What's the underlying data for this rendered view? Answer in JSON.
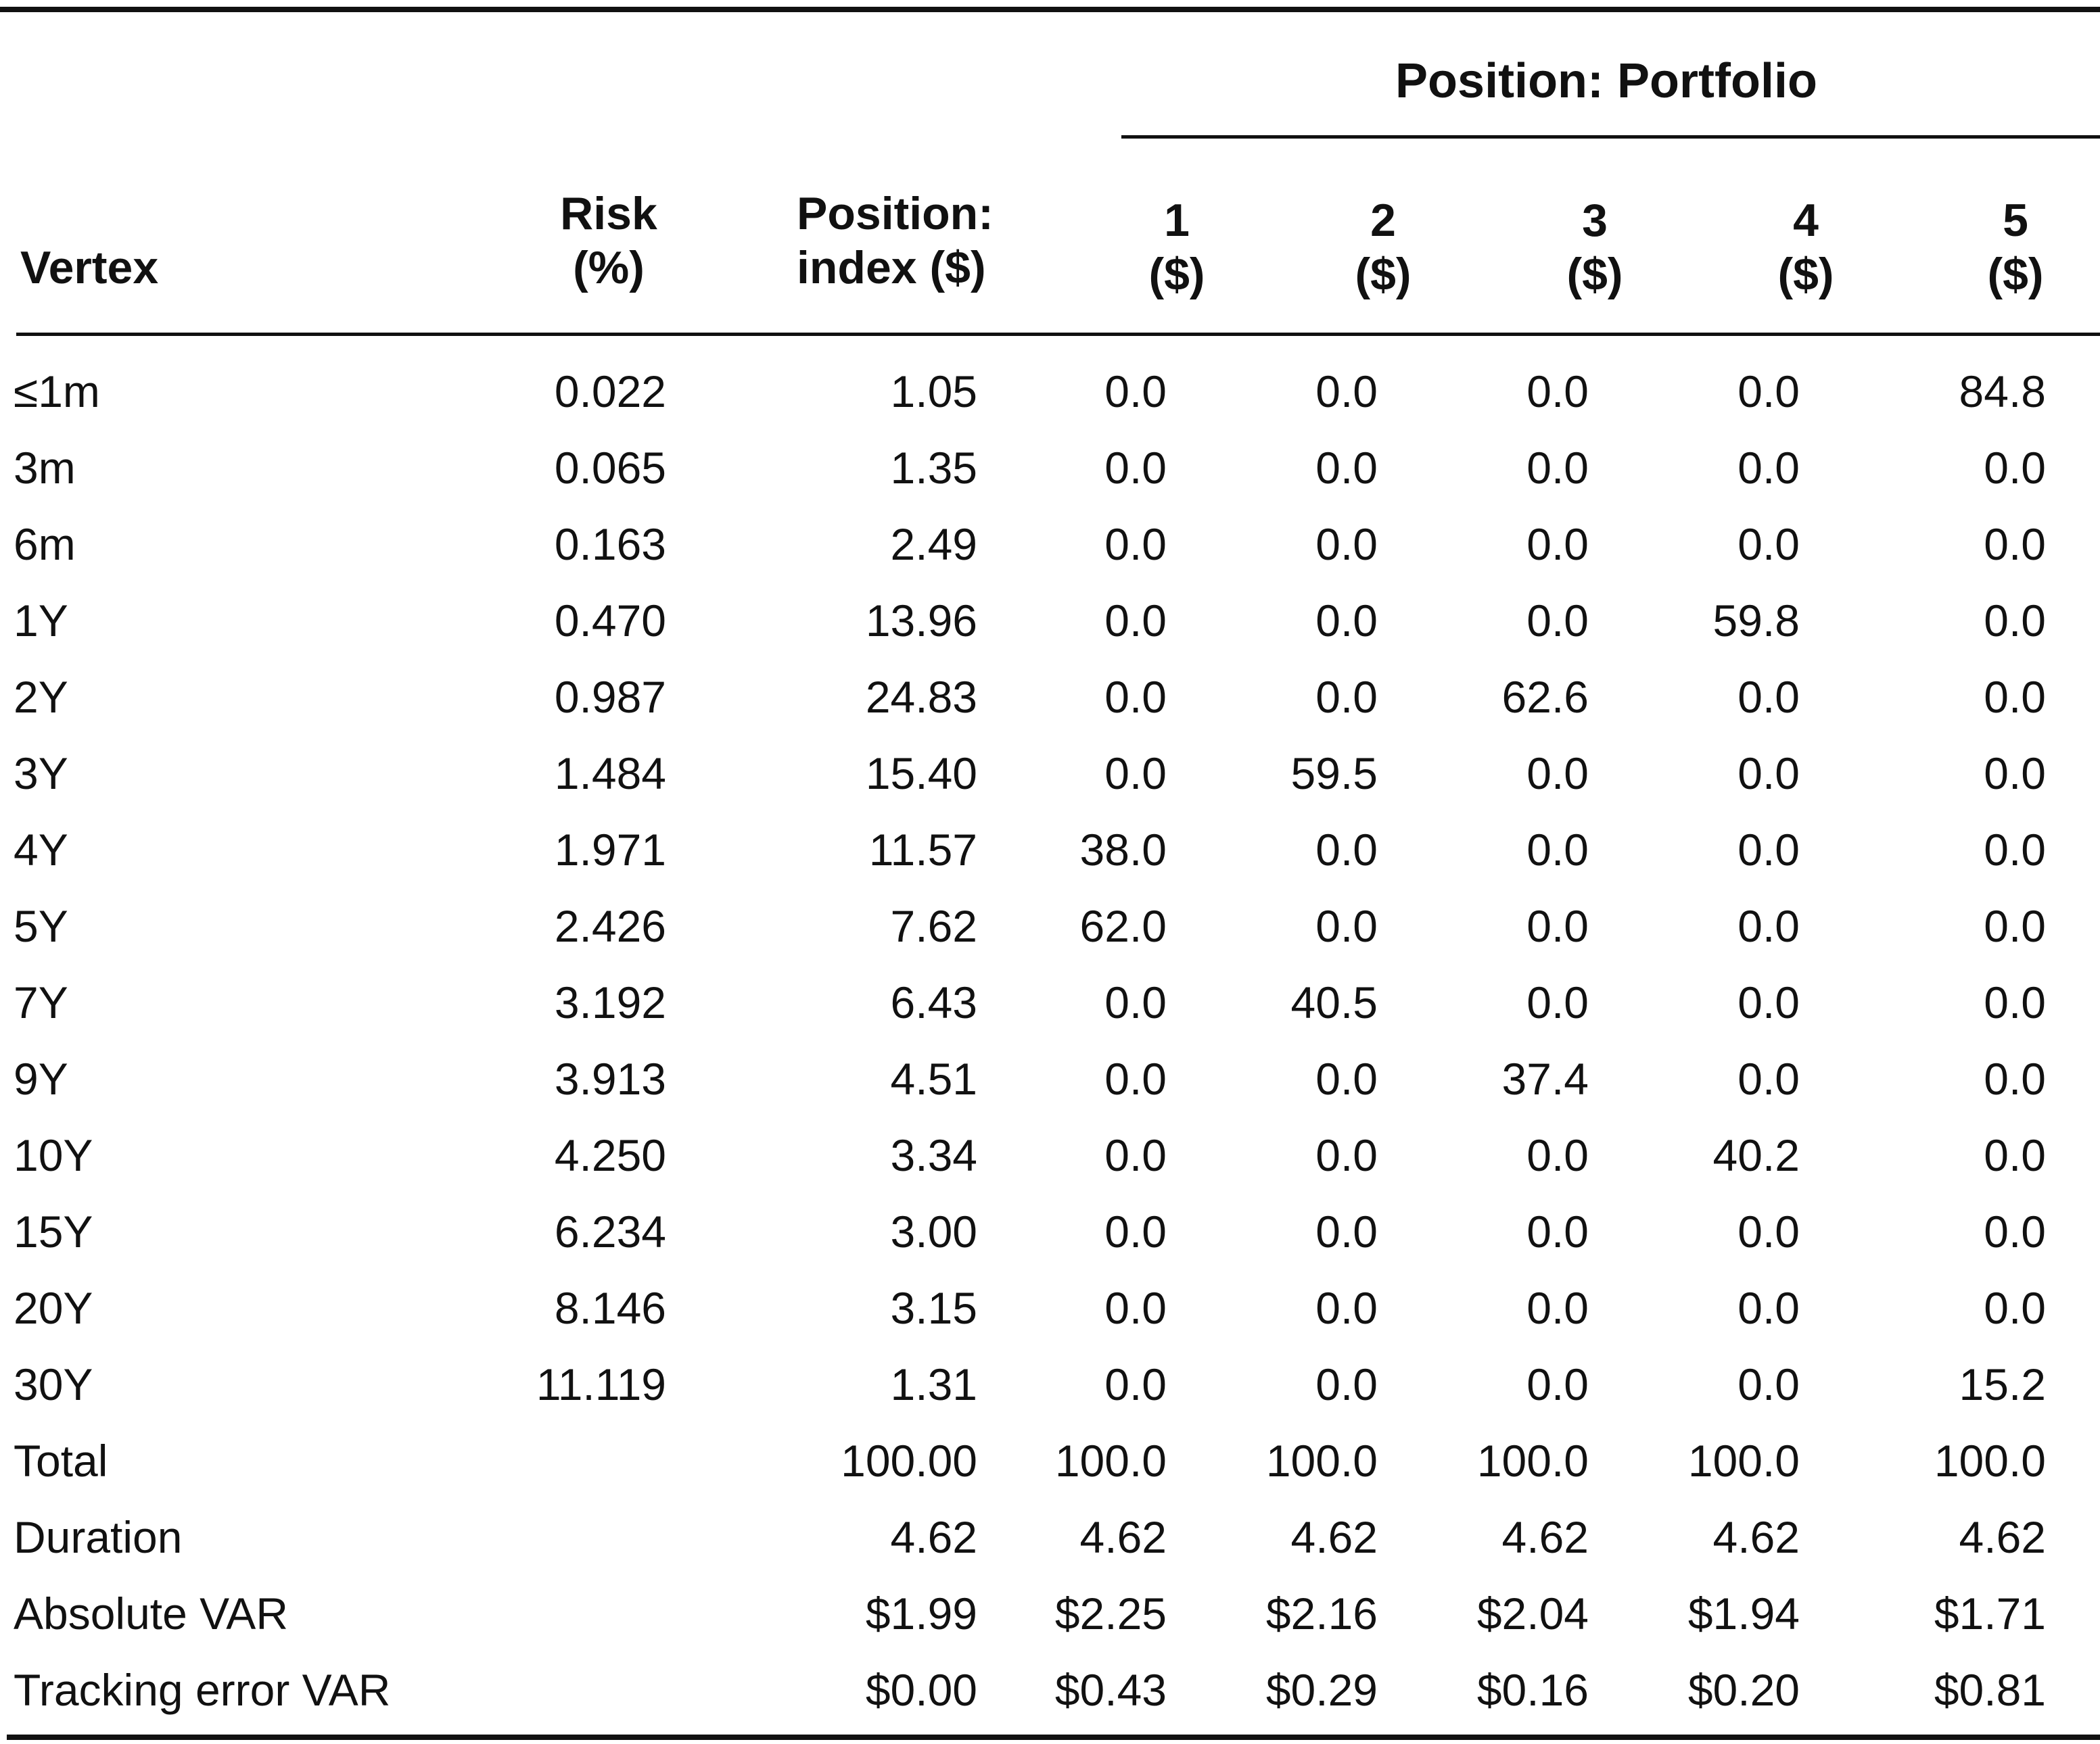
{
  "table": {
    "group_header": "Position: Portfolio",
    "columns": {
      "vertex": "Vertex",
      "risk": [
        "Risk",
        "(%)"
      ],
      "index": [
        "Position:",
        "index ($)"
      ],
      "p1": [
        "1",
        "($)"
      ],
      "p2": [
        "2",
        "($)"
      ],
      "p3": [
        "3",
        "($)"
      ],
      "p4": [
        "4",
        "($)"
      ],
      "p5": [
        "5",
        "($)"
      ]
    },
    "rows": [
      [
        "≤1m",
        "0.022",
        "1.05",
        "0.0",
        "0.0",
        "0.0",
        "0.0",
        "84.8"
      ],
      [
        "3m",
        "0.065",
        "1.35",
        "0.0",
        "0.0",
        "0.0",
        "0.0",
        "0.0"
      ],
      [
        "6m",
        "0.163",
        "2.49",
        "0.0",
        "0.0",
        "0.0",
        "0.0",
        "0.0"
      ],
      [
        "1Y",
        "0.470",
        "13.96",
        "0.0",
        "0.0",
        "0.0",
        "59.8",
        "0.0"
      ],
      [
        "2Y",
        "0.987",
        "24.83",
        "0.0",
        "0.0",
        "62.6",
        "0.0",
        "0.0"
      ],
      [
        "3Y",
        "1.484",
        "15.40",
        "0.0",
        "59.5",
        "0.0",
        "0.0",
        "0.0"
      ],
      [
        "4Y",
        "1.971",
        "11.57",
        "38.0",
        "0.0",
        "0.0",
        "0.0",
        "0.0"
      ],
      [
        "5Y",
        "2.426",
        "7.62",
        "62.0",
        "0.0",
        "0.0",
        "0.0",
        "0.0"
      ],
      [
        "7Y",
        "3.192",
        "6.43",
        "0.0",
        "40.5",
        "0.0",
        "0.0",
        "0.0"
      ],
      [
        "9Y",
        "3.913",
        "4.51",
        "0.0",
        "0.0",
        "37.4",
        "0.0",
        "0.0"
      ],
      [
        "10Y",
        "4.250",
        "3.34",
        "0.0",
        "0.0",
        "0.0",
        "40.2",
        "0.0"
      ],
      [
        "15Y",
        "6.234",
        "3.00",
        "0.0",
        "0.0",
        "0.0",
        "0.0",
        "0.0"
      ],
      [
        "20Y",
        "8.146",
        "3.15",
        "0.0",
        "0.0",
        "0.0",
        "0.0",
        "0.0"
      ],
      [
        "30Y",
        "11.119",
        "1.31",
        "0.0",
        "0.0",
        "0.0",
        "0.0",
        "15.2"
      ],
      [
        "Total",
        "",
        "100.00",
        "100.0",
        "100.0",
        "100.0",
        "100.0",
        "100.0"
      ],
      [
        "Duration",
        "",
        "4.62",
        "4.62",
        "4.62",
        "4.62",
        "4.62",
        "4.62"
      ],
      [
        "Absolute VAR",
        "",
        "$1.99",
        "$2.25",
        "$2.16",
        "$2.04",
        "$1.94",
        "$1.71"
      ],
      [
        "Tracking error VAR",
        "",
        "$0.00",
        "$0.43",
        "$0.29",
        "$0.16",
        "$0.20",
        "$0.81"
      ]
    ]
  }
}
